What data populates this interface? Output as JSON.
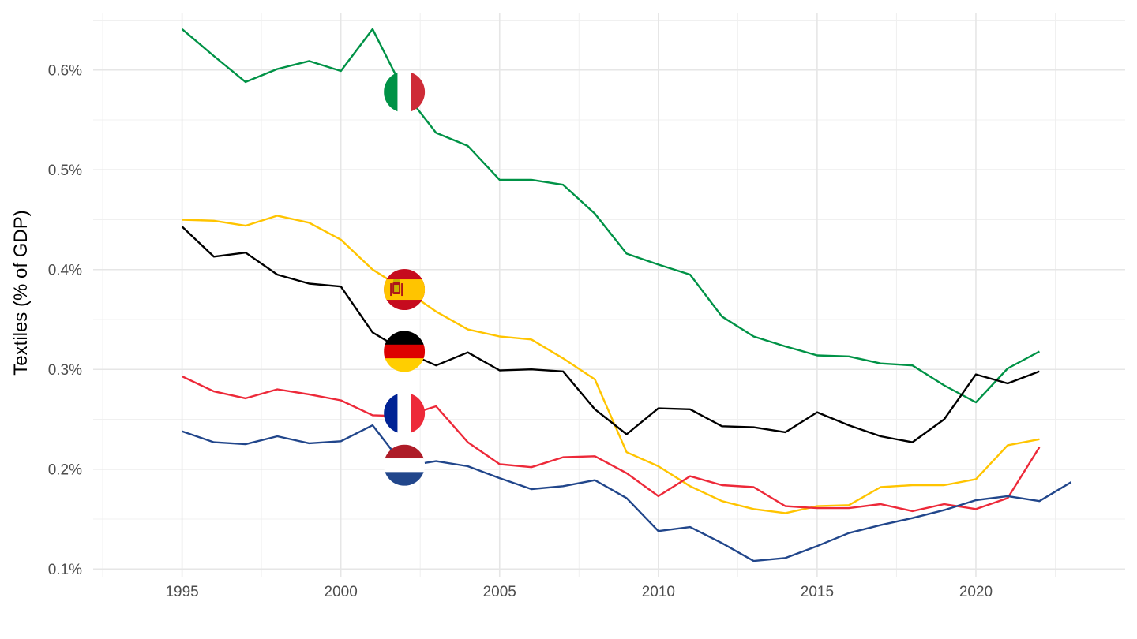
{
  "chart_data": {
    "type": "line",
    "title": "",
    "xlabel": "",
    "ylabel": "Textiles (% of GDP)",
    "xlim": [
      1992.2,
      2024.7
    ],
    "ylim": [
      0.0915,
      0.6575
    ],
    "x_ticks": [
      1995,
      2000,
      2005,
      2010,
      2015,
      2020
    ],
    "x_tick_labels": [
      "1995",
      "2000",
      "2005",
      "2010",
      "2015",
      "2020"
    ],
    "y_ticks": [
      0.1,
      0.2,
      0.3,
      0.4,
      0.5,
      0.6
    ],
    "y_tick_labels": [
      "0.1%",
      "0.2%",
      "0.3%",
      "0.4%",
      "0.5%",
      "0.6%"
    ],
    "grid": true,
    "legend": "flags on the lines at 2002",
    "series": [
      {
        "flag": "italy-flag",
        "color": "#009246",
        "x": [
          1995,
          1996,
          1997,
          1998,
          1999,
          2000,
          2001,
          2002,
          2003,
          2004,
          2005,
          2006,
          2007,
          2008,
          2009,
          2010,
          2011,
          2012,
          2013,
          2014,
          2015,
          2016,
          2017,
          2018,
          2019,
          2020,
          2021,
          2022
        ],
        "values": [
          0.641,
          0.614,
          0.588,
          0.601,
          0.609,
          0.599,
          0.641,
          0.578,
          0.537,
          0.524,
          0.49,
          0.49,
          0.485,
          0.456,
          0.416,
          0.405,
          0.395,
          0.353,
          0.333,
          0.323,
          0.314,
          0.313,
          0.306,
          0.304,
          0.284,
          0.267,
          0.301,
          0.318
        ]
      },
      {
        "flag": "spain-flag",
        "color": "#FFC400",
        "x": [
          1995,
          1996,
          1997,
          1998,
          1999,
          2000,
          2001,
          2002,
          2003,
          2004,
          2005,
          2006,
          2007,
          2008,
          2009,
          2010,
          2011,
          2012,
          2013,
          2014,
          2015,
          2016,
          2017,
          2018,
          2019,
          2020,
          2021,
          2022
        ],
        "values": [
          0.45,
          0.449,
          0.444,
          0.454,
          0.447,
          0.43,
          0.4,
          0.38,
          0.358,
          0.34,
          0.333,
          0.33,
          0.311,
          0.29,
          0.217,
          0.203,
          0.183,
          0.168,
          0.16,
          0.156,
          0.163,
          0.164,
          0.182,
          0.184,
          0.184,
          0.19,
          0.224,
          0.23
        ]
      },
      {
        "flag": "germany-flag",
        "color": "#000000",
        "x": [
          1995,
          1996,
          1997,
          1998,
          1999,
          2000,
          2001,
          2002,
          2003,
          2004,
          2005,
          2006,
          2007,
          2008,
          2009,
          2010,
          2011,
          2012,
          2013,
          2014,
          2015,
          2016,
          2017,
          2018,
          2019,
          2020,
          2021,
          2022
        ],
        "values": [
          0.443,
          0.413,
          0.417,
          0.395,
          0.386,
          0.383,
          0.337,
          0.318,
          0.304,
          0.317,
          0.299,
          0.3,
          0.298,
          0.26,
          0.235,
          0.261,
          0.26,
          0.243,
          0.242,
          0.237,
          0.257,
          0.244,
          0.233,
          0.227,
          0.25,
          0.295,
          0.286,
          0.298
        ]
      },
      {
        "flag": "france-flag",
        "color": "#ED2939",
        "x": [
          1995,
          1996,
          1997,
          1998,
          1999,
          2000,
          2001,
          2002,
          2003,
          2004,
          2005,
          2006,
          2007,
          2008,
          2009,
          2010,
          2011,
          2012,
          2013,
          2014,
          2015,
          2016,
          2017,
          2018,
          2019,
          2020,
          2021,
          2022
        ],
        "values": [
          0.293,
          0.278,
          0.271,
          0.28,
          0.275,
          0.269,
          0.254,
          0.253,
          0.263,
          0.227,
          0.205,
          0.202,
          0.212,
          0.213,
          0.196,
          0.173,
          0.193,
          0.184,
          0.182,
          0.163,
          0.161,
          0.161,
          0.165,
          0.158,
          0.165,
          0.16,
          0.171,
          0.222
        ]
      },
      {
        "flag": "netherlands-flag",
        "color": "#21468B",
        "x": [
          1995,
          1996,
          1997,
          1998,
          1999,
          2000,
          2001,
          2002,
          2003,
          2004,
          2005,
          2006,
          2007,
          2008,
          2009,
          2010,
          2011,
          2012,
          2013,
          2014,
          2015,
          2016,
          2017,
          2018,
          2019,
          2020,
          2021,
          2022,
          2023
        ],
        "values": [
          0.238,
          0.227,
          0.225,
          0.233,
          0.226,
          0.228,
          0.244,
          0.203,
          0.208,
          0.203,
          0.191,
          0.18,
          0.183,
          0.189,
          0.171,
          0.138,
          0.142,
          0.126,
          0.108,
          0.111,
          0.123,
          0.136,
          0.144,
          0.151,
          0.159,
          0.169,
          0.173,
          0.168,
          0.187
        ]
      }
    ],
    "flag_x": 2002,
    "flag_y": {
      "italy-flag": 0.578,
      "spain-flag": 0.38,
      "germany-flag": 0.318,
      "france-flag": 0.256,
      "netherlands-flag": 0.204
    }
  }
}
